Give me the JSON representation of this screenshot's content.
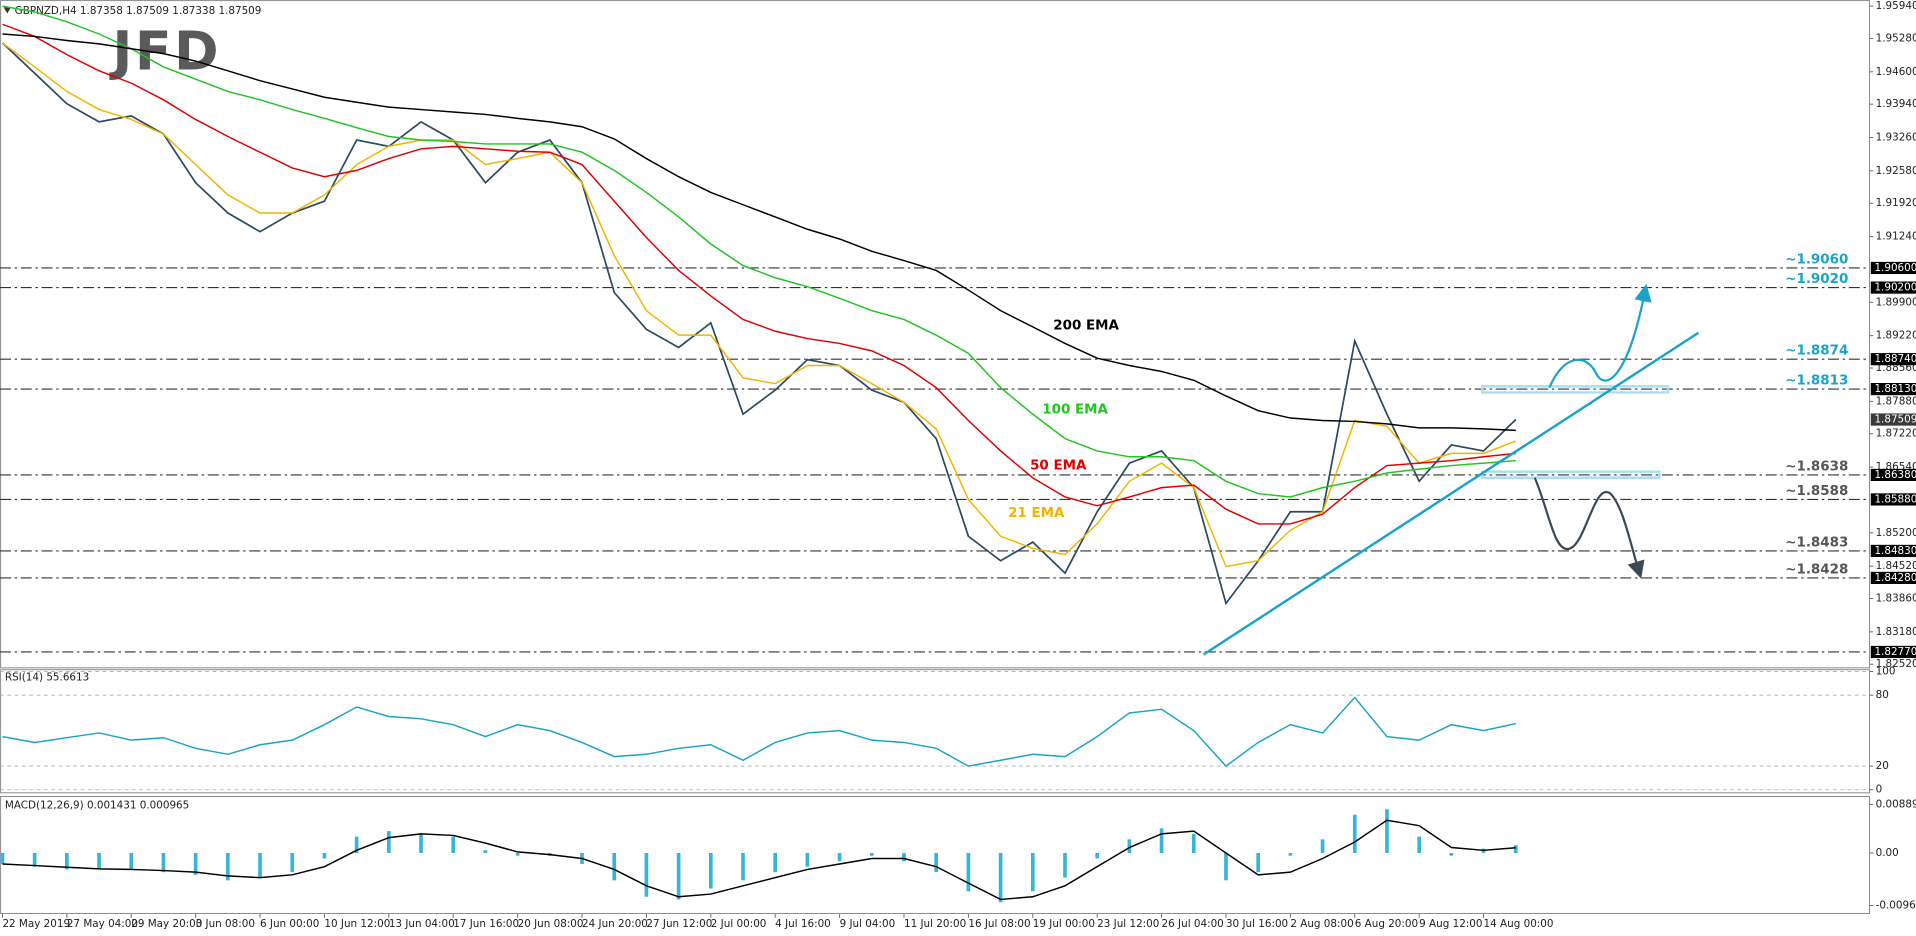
{
  "chart_data": [
    {
      "type": "line",
      "title": "GBPNZD,H4  1.87358 1.87509 1.87338 1.87509",
      "watermark": "JFD",
      "categories": [
        "22 May 2019",
        null,
        "27 May 04:00",
        null,
        "29 May 20:00",
        null,
        "3 Jun 08:00",
        null,
        "6 Jun 00:00",
        null,
        "10 Jun 12:00",
        null,
        "13 Jun 04:00",
        null,
        "17 Jun 16:00",
        null,
        "20 Jun 08:00",
        null,
        "24 Jun 20:00",
        null,
        "27 Jun 12:00",
        null,
        "2 Jul 00:00",
        null,
        "4 Jul 16:00",
        null,
        "9 Jul 04:00",
        null,
        "11 Jul 20:00",
        null,
        "16 Jul 08:00",
        null,
        "19 Jul 00:00",
        null,
        "23 Jul 12:00",
        null,
        "26 Jul 04:00",
        null,
        "30 Jul 16:00",
        null,
        "2 Aug 08:00",
        null,
        "6 Aug 20:00",
        null,
        "9 Aug 12:00",
        null,
        "14 Aug 00:00",
        null
      ],
      "ylim": [
        1.8252,
        1.9594
      ],
      "yticks": [
        {
          "value": 1.9594,
          "label": "1.95940"
        },
        {
          "value": 1.9528,
          "label": "1.95280"
        },
        {
          "value": 1.946,
          "label": "1.94600"
        },
        {
          "value": 1.9394,
          "label": "1.93940"
        },
        {
          "value": 1.9326,
          "label": "1.93260"
        },
        {
          "value": 1.9258,
          "label": "1.92580"
        },
        {
          "value": 1.9192,
          "label": "1.91920"
        },
        {
          "value": 1.9124,
          "label": "1.91240"
        },
        {
          "value": 1.899,
          "label": "1.89900"
        },
        {
          "value": 1.8922,
          "label": "1.89220"
        },
        {
          "value": 1.8856,
          "label": "1.88560"
        },
        {
          "value": 1.8788,
          "label": "1.87880"
        },
        {
          "value": 1.8722,
          "label": "1.87220"
        },
        {
          "value": 1.8654,
          "label": "1.86540"
        },
        {
          "value": 1.852,
          "label": "1.85200"
        },
        {
          "value": 1.8452,
          "label": "1.84520"
        },
        {
          "value": 1.8386,
          "label": "1.83860"
        },
        {
          "value": 1.8318,
          "label": "1.83180"
        },
        {
          "value": 1.8252,
          "label": "1.82520"
        }
      ],
      "levels": [
        {
          "value": 1.906,
          "label": "1.90600",
          "note": "~1.9060",
          "color": "#1aa3c8"
        },
        {
          "value": 1.902,
          "label": "1.90200",
          "note": "~1.9020",
          "color": "#1aa3c8"
        },
        {
          "value": 1.8874,
          "label": "1.88740",
          "note": "~1.8874",
          "color": "#1aa3c8"
        },
        {
          "value": 1.8813,
          "label": "1.88130",
          "note": "~1.8813",
          "color": "#1aa3c8"
        },
        {
          "value": 1.8638,
          "label": "1.86380",
          "note": "~1.8638",
          "color": "#555555"
        },
        {
          "value": 1.8588,
          "label": "1.85880",
          "note": "~1.8588",
          "color": "#555555"
        },
        {
          "value": 1.8483,
          "label": "1.84830",
          "note": "~1.8483",
          "color": "#555555"
        },
        {
          "value": 1.8428,
          "label": "1.84280",
          "note": "~1.8428",
          "color": "#555555"
        },
        {
          "value": 1.8277,
          "label": "1.82770"
        }
      ],
      "last_price": {
        "value": 1.87509,
        "label": "1.87509"
      },
      "series": [
        {
          "color": "#2b4a5e",
          "values": [
            1.9519,
            1.9457,
            1.9395,
            1.9358,
            1.937,
            1.9333,
            1.9234,
            1.9172,
            1.9134,
            1.9172,
            1.9196,
            1.9321,
            1.9308,
            1.9358,
            1.9321,
            1.9234,
            1.9296,
            1.9321,
            1.9234,
            1.901,
            1.8935,
            1.8898,
            1.8948,
            1.8762,
            1.8811,
            1.8873,
            1.8861,
            1.8811,
            1.8786,
            1.8712,
            1.8513,
            1.8463,
            1.8501,
            1.8438,
            1.8563,
            1.8662,
            1.8687,
            1.8612,
            1.8376,
            1.8463,
            1.8563,
            1.8563,
            1.8911,
            1.8762,
            1.8625,
            1.8699,
            1.8687,
            1.8751
          ]
        },
        {
          "name": "21 EMA",
          "color": "#f0b400",
          "values": [
            1.9519,
            1.947,
            1.942,
            1.9383,
            1.9363,
            1.9333,
            1.9271,
            1.9209,
            1.9172,
            1.9172,
            1.9209,
            1.9271,
            1.9308,
            1.9321,
            1.9321,
            1.9271,
            1.9283,
            1.9296,
            1.9234,
            1.9085,
            1.8973,
            1.8923,
            1.8923,
            1.8836,
            1.8824,
            1.8861,
            1.8861,
            1.8824,
            1.8786,
            1.8732,
            1.8588,
            1.8513,
            1.8488,
            1.8476,
            1.8538,
            1.8625,
            1.8662,
            1.8612,
            1.8451,
            1.8463,
            1.8525,
            1.8563,
            1.8749,
            1.8737,
            1.8662,
            1.8682,
            1.8682,
            1.8707
          ]
        },
        {
          "name": "50 EMA",
          "color": "#e00000",
          "values": [
            1.9557,
            1.9532,
            1.9495,
            1.9462,
            1.9437,
            1.9403,
            1.9363,
            1.9328,
            1.9296,
            1.9264,
            1.9246,
            1.9259,
            1.9283,
            1.9303,
            1.9308,
            1.9303,
            1.9298,
            1.9296,
            1.9271,
            1.9196,
            1.9122,
            1.9055,
            1.9003,
            1.8955,
            1.8931,
            1.8916,
            1.8906,
            1.8891,
            1.8861,
            1.8816,
            1.8749,
            1.8687,
            1.8632,
            1.8593,
            1.8575,
            1.8593,
            1.8612,
            1.8617,
            1.8568,
            1.8538,
            1.8538,
            1.8558,
            1.8612,
            1.8657,
            1.8662,
            1.8667,
            1.8675,
            1.8682
          ]
        },
        {
          "name": "100 EMA",
          "color": "#22c322",
          "values": [
            1.9594,
            1.9582,
            1.9562,
            1.9537,
            1.9507,
            1.947,
            1.9445,
            1.942,
            1.9403,
            1.9383,
            1.9365,
            1.9346,
            1.9328,
            1.9321,
            1.9318,
            1.9313,
            1.9313,
            1.9313,
            1.9296,
            1.9259,
            1.9214,
            1.9164,
            1.9109,
            1.9065,
            1.904,
            1.9022,
            1.8998,
            1.8973,
            1.8955,
            1.8923,
            1.8886,
            1.8816,
            1.8762,
            1.8712,
            1.8687,
            1.8675,
            1.8675,
            1.8667,
            1.8625,
            1.86,
            1.8593,
            1.8612,
            1.8625,
            1.8642,
            1.865,
            1.8657,
            1.8662,
            1.8667
          ]
        },
        {
          "name": "200 EMA",
          "color": "#000000",
          "values": [
            1.9537,
            1.9532,
            1.9524,
            1.9517,
            1.9507,
            1.9497,
            1.9482,
            1.9462,
            1.9442,
            1.9425,
            1.9408,
            1.9398,
            1.9388,
            1.9383,
            1.9378,
            1.9373,
            1.9365,
            1.9358,
            1.9348,
            1.9323,
            1.9283,
            1.9246,
            1.9214,
            1.9189,
            1.9164,
            1.9139,
            1.9119,
            1.9094,
            1.9075,
            1.9055,
            1.9015,
            1.8973,
            1.894,
            1.8906,
            1.8876,
            1.8861,
            1.8849,
            1.8831,
            1.8799,
            1.8769,
            1.8754,
            1.8749,
            1.8747,
            1.8742,
            1.8734,
            1.8734,
            1.8732,
            1.8729
          ]
        }
      ]
    },
    {
      "type": "line",
      "title": "RSI(14) 55.6613",
      "ylim": [
        0,
        100
      ],
      "yticks": [
        0,
        20,
        80,
        100
      ],
      "series": [
        {
          "color": "#1aa3c8",
          "values": [
            45,
            40,
            44,
            48,
            42,
            44,
            35,
            30,
            38,
            42,
            55,
            70,
            62,
            60,
            55,
            45,
            55,
            50,
            40,
            28,
            30,
            35,
            38,
            25,
            40,
            48,
            50,
            42,
            40,
            35,
            20,
            25,
            30,
            28,
            45,
            65,
            68,
            50,
            20,
            40,
            55,
            48,
            78,
            45,
            42,
            55,
            50,
            56
          ]
        }
      ]
    },
    {
      "type": "bar",
      "title": "MACD(12,26,9) 0.001431 0.000965",
      "ylim": [
        -0.009606,
        0.008893
      ],
      "yticks": [
        0.008893,
        {
          "value": 0,
          "label": "0.00"
        },
        -0.009606
      ],
      "series": [
        {
          "type": "bar",
          "color": "#35b6d6",
          "values": [
            -0.002,
            -0.0025,
            -0.003,
            -0.003,
            -0.003,
            -0.0035,
            -0.004,
            -0.005,
            -0.0045,
            -0.0035,
            -0.001,
            0.003,
            0.004,
            0.0035,
            0.003,
            0.0005,
            -0.0005,
            -0.0005,
            -0.002,
            -0.005,
            -0.008,
            -0.0085,
            -0.0065,
            -0.005,
            -0.0035,
            -0.0025,
            -0.0015,
            -0.0005,
            -0.0015,
            -0.0035,
            -0.007,
            -0.009,
            -0.007,
            -0.0045,
            -0.001,
            0.0025,
            0.0045,
            0.0035,
            -0.005,
            -0.0035,
            -0.0005,
            0.0025,
            0.007,
            0.008,
            0.003,
            -0.0005,
            0.0008,
            0.001431
          ]
        },
        {
          "type": "line",
          "color": "#000000",
          "values": [
            -0.002,
            -0.0023,
            -0.0026,
            -0.0029,
            -0.003,
            -0.0032,
            -0.0035,
            -0.0042,
            -0.0045,
            -0.004,
            -0.0025,
            0.0005,
            0.0028,
            0.0035,
            0.0032,
            0.0018,
            0.0002,
            -0.0003,
            -0.001,
            -0.003,
            -0.006,
            -0.008,
            -0.0075,
            -0.006,
            -0.0045,
            -0.003,
            -0.002,
            -0.001,
            -0.001,
            -0.0025,
            -0.0055,
            -0.0085,
            -0.008,
            -0.006,
            -0.0025,
            0.001,
            0.0035,
            0.004,
            0,
            -0.004,
            -0.0035,
            -0.001,
            0.002,
            0.006,
            0.005,
            0.001,
            0.0005,
            0.000965
          ]
        }
      ]
    }
  ]
}
